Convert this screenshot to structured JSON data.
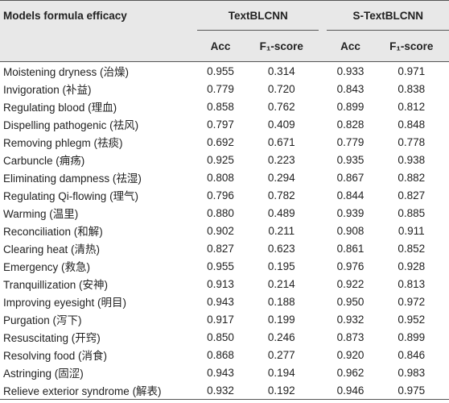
{
  "table": {
    "header": {
      "corner": "Models formula efficacy",
      "groups": [
        "TextBLCNN",
        "S-TextBLCNN"
      ],
      "subheaders": [
        "Acc",
        "F₁-score",
        "Acc",
        "F₁-score"
      ]
    },
    "rows": [
      [
        "Moistening dryness (治燥)",
        "0.955",
        "0.314",
        "0.933",
        "0.971"
      ],
      [
        "Invigoration (补益)",
        "0.779",
        "0.720",
        "0.843",
        "0.838"
      ],
      [
        "Regulating blood (理血)",
        "0.858",
        "0.762",
        "0.899",
        "0.812"
      ],
      [
        "Dispelling pathogenic (祛风)",
        "0.797",
        "0.409",
        "0.828",
        "0.848"
      ],
      [
        "Removing phlegm (祛痰)",
        "0.692",
        "0.671",
        "0.779",
        "0.778"
      ],
      [
        "Carbuncle (痈疡)",
        "0.925",
        "0.223",
        "0.935",
        "0.938"
      ],
      [
        "Eliminating dampness (祛湿)",
        "0.808",
        "0.294",
        "0.867",
        "0.882"
      ],
      [
        "Regulating Qi-flowing (理气)",
        "0.796",
        "0.782",
        "0.844",
        "0.827"
      ],
      [
        "Warming (温里)",
        "0.880",
        "0.489",
        "0.939",
        "0.885"
      ],
      [
        "Reconciliation (和解)",
        "0.902",
        "0.211",
        "0.908",
        "0.911"
      ],
      [
        "Clearing heat (清热)",
        "0.827",
        "0.623",
        "0.861",
        "0.852"
      ],
      [
        "Emergency (救急)",
        "0.955",
        "0.195",
        "0.976",
        "0.928"
      ],
      [
        "Tranquillization (安神)",
        "0.913",
        "0.214",
        "0.922",
        "0.813"
      ],
      [
        "Improving eyesight (明目)",
        "0.943",
        "0.188",
        "0.950",
        "0.972"
      ],
      [
        "Purgation (泻下)",
        "0.917",
        "0.199",
        "0.932",
        "0.952"
      ],
      [
        "Resuscitating (开窍)",
        "0.850",
        "0.246",
        "0.873",
        "0.899"
      ],
      [
        "Resolving food (消食)",
        "0.868",
        "0.277",
        "0.920",
        "0.846"
      ],
      [
        "Astringing (固涩)",
        "0.943",
        "0.194",
        "0.962",
        "0.983"
      ],
      [
        "Relieve exterior syndrome (解表)",
        "0.932",
        "0.192",
        "0.946",
        "0.975"
      ]
    ]
  }
}
